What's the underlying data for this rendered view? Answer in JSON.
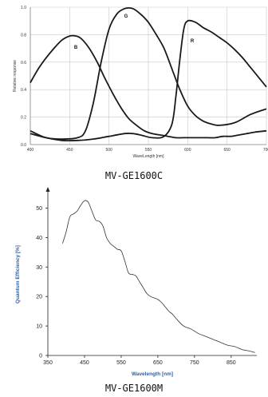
{
  "chart_data": [
    {
      "type": "line",
      "title": "",
      "xlabel": "WaveLength [nm]",
      "ylabel": "Relative response",
      "xlim": [
        400,
        700
      ],
      "ylim": [
        0,
        1.0
      ],
      "xticks": [
        "400",
        "450",
        "500",
        "550",
        "600",
        "650",
        "700"
      ],
      "yticks": [
        "0.0",
        "0.2",
        "0.4",
        "0.6",
        "0.8",
        "1.0"
      ],
      "grid": true,
      "series": [
        {
          "name": "B",
          "x": [
            400,
            410,
            420,
            430,
            440,
            450,
            458,
            465,
            475,
            485,
            495,
            505,
            515,
            525,
            535,
            545,
            555,
            565,
            575,
            585,
            595,
            605,
            615,
            625,
            635,
            645,
            655,
            665,
            675,
            685,
            700
          ],
          "y": [
            0.45,
            0.55,
            0.63,
            0.7,
            0.76,
            0.79,
            0.79,
            0.77,
            0.7,
            0.6,
            0.48,
            0.37,
            0.27,
            0.19,
            0.14,
            0.1,
            0.08,
            0.07,
            0.06,
            0.05,
            0.05,
            0.05,
            0.05,
            0.05,
            0.05,
            0.06,
            0.06,
            0.07,
            0.08,
            0.09,
            0.1
          ]
        },
        {
          "name": "G",
          "x": [
            400,
            420,
            440,
            460,
            470,
            480,
            490,
            500,
            510,
            520,
            530,
            540,
            550,
            560,
            570,
            580,
            590,
            600,
            610,
            620,
            630,
            640,
            660,
            680,
            700
          ],
          "y": [
            0.1,
            0.05,
            0.04,
            0.05,
            0.1,
            0.3,
            0.6,
            0.84,
            0.95,
            0.99,
            0.99,
            0.95,
            0.89,
            0.8,
            0.7,
            0.55,
            0.4,
            0.28,
            0.21,
            0.17,
            0.15,
            0.14,
            0.16,
            0.22,
            0.26
          ]
        },
        {
          "name": "R",
          "x": [
            400,
            420,
            440,
            460,
            480,
            500,
            520,
            530,
            540,
            555,
            570,
            580,
            585,
            590,
            595,
            600,
            610,
            620,
            630,
            640,
            650,
            660,
            670,
            680,
            700
          ],
          "y": [
            0.08,
            0.05,
            0.03,
            0.03,
            0.04,
            0.06,
            0.08,
            0.08,
            0.07,
            0.05,
            0.06,
            0.15,
            0.35,
            0.62,
            0.84,
            0.9,
            0.89,
            0.85,
            0.82,
            0.78,
            0.74,
            0.69,
            0.63,
            0.56,
            0.42
          ]
        }
      ],
      "caption": "MV-GE1600C"
    },
    {
      "type": "line",
      "title": "",
      "xlabel": "Wavelength [nm]",
      "ylabel": "Quantum Efficiency [%]",
      "xlim": [
        350,
        920
      ],
      "ylim": [
        0,
        55
      ],
      "xticks": [
        "350",
        "450",
        "550",
        "650",
        "750",
        "850"
      ],
      "yticks": [
        "0",
        "10",
        "20",
        "30",
        "40",
        "50"
      ],
      "grid": false,
      "series": [
        {
          "x": [
            390,
            400,
            410,
            420,
            430,
            440,
            450,
            460,
            470,
            480,
            490,
            500,
            510,
            520,
            530,
            540,
            550,
            560,
            570,
            580,
            590,
            600,
            610,
            620,
            630,
            640,
            650,
            660,
            670,
            680,
            690,
            700,
            720,
            740,
            760,
            780,
            800,
            820,
            840,
            860,
            880,
            900,
            915
          ],
          "y": [
            38,
            42,
            47,
            48,
            49,
            51,
            52.5,
            52,
            49,
            46,
            45.5,
            44,
            40,
            38,
            37,
            36,
            35.5,
            32,
            28,
            27.5,
            27,
            25,
            23,
            21,
            20,
            19.5,
            19,
            18,
            16.5,
            15,
            14,
            12.5,
            10,
            9,
            7.5,
            6.5,
            5.5,
            4.5,
            3.5,
            3,
            2,
            1.5,
            1
          ]
        }
      ],
      "caption": "MV-GE1600M"
    }
  ]
}
